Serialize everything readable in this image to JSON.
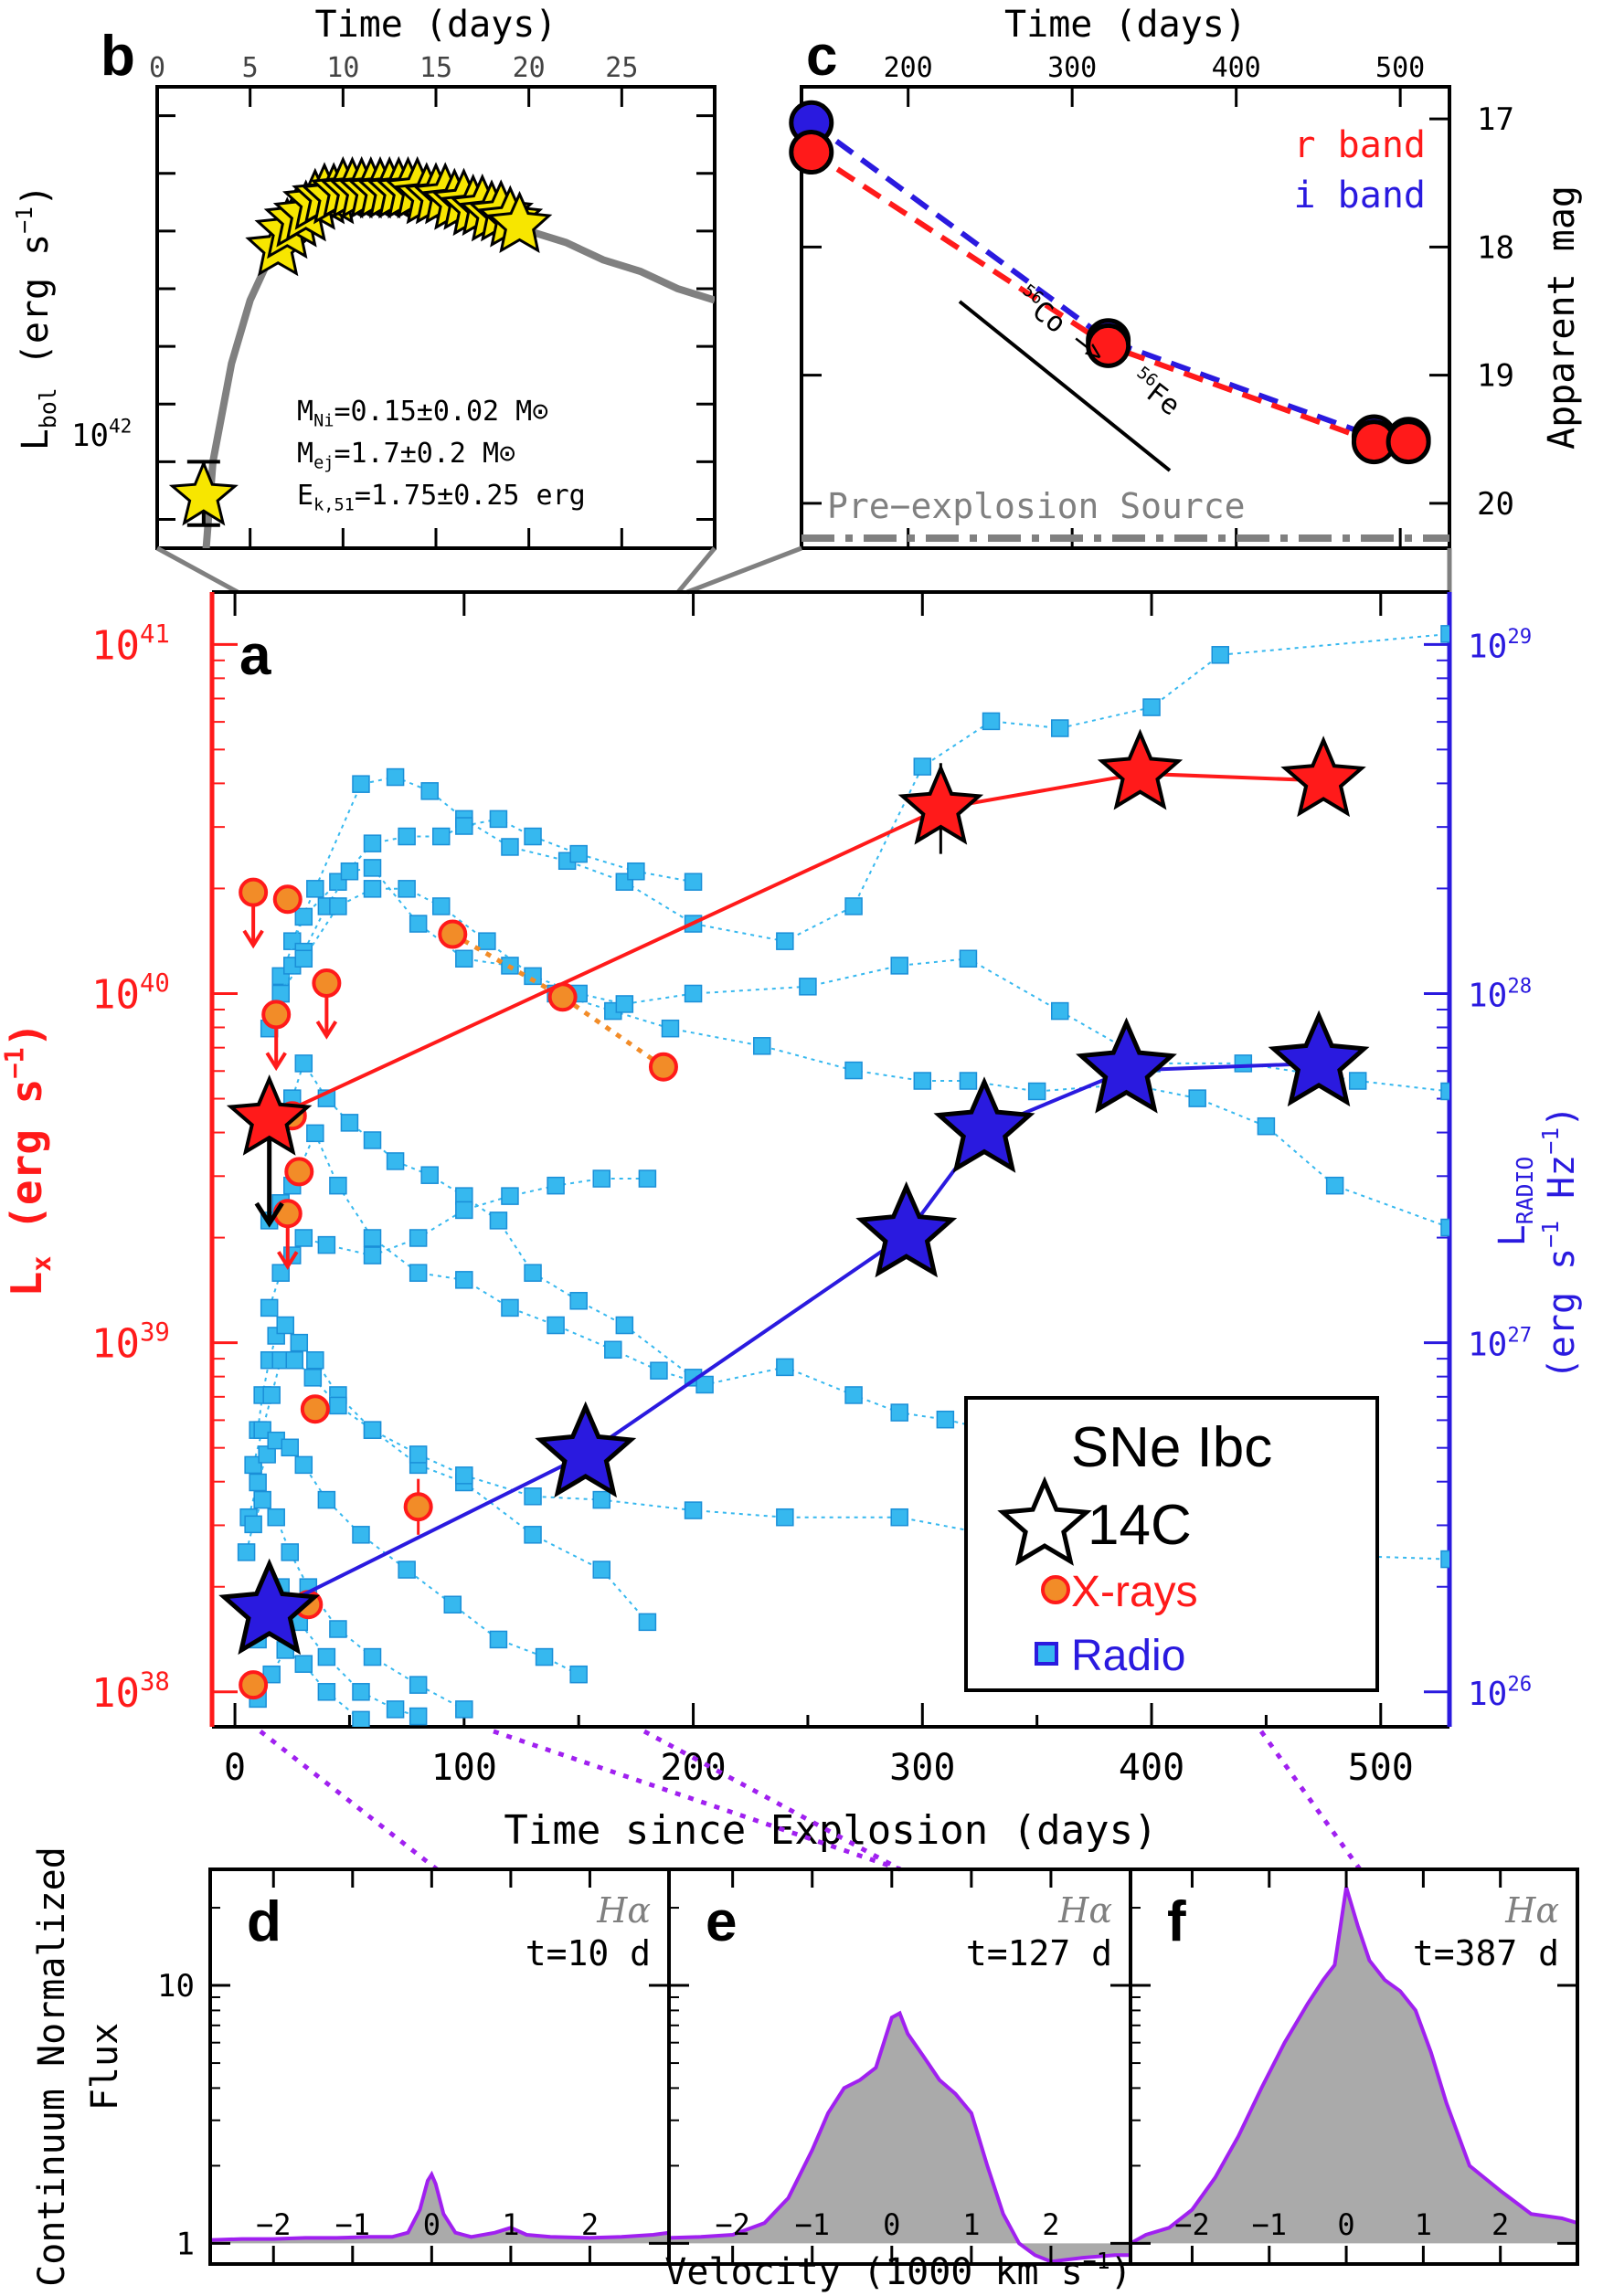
{
  "panel_labels": {
    "a": "a",
    "b": "b",
    "c": "c",
    "d": "d",
    "e": "e",
    "f": "f"
  },
  "colors": {
    "xray_red": "#ff1a1a",
    "radio_blue": "#2a1adf",
    "cyan": "#36b8ef",
    "orange": "#f28c28",
    "yellow": "#f7e600",
    "purple": "#a020f0",
    "grey": "#808080"
  },
  "chart_data": [
    {
      "id": "b",
      "type": "line",
      "xlabel": "Time (days)",
      "ylabel_main": "L",
      "ylabel_sub": "bol",
      "ylabel_tail": " (erg s",
      "ylabel_sup": "−1",
      "ylabel_end": ")",
      "xticks": [
        "0",
        "5",
        "10",
        "15",
        "20",
        "25"
      ],
      "ytick_label": {
        "base": "10",
        "exp": "42"
      },
      "xlim": [
        0,
        30
      ],
      "ylim_log": [
        41.8,
        42.6
      ],
      "model_curve": {
        "x": [
          2.2,
          3,
          4,
          5,
          6,
          7,
          8,
          9,
          10,
          11,
          12,
          13,
          14,
          15,
          16,
          17,
          18,
          19,
          20,
          22,
          24,
          26,
          28,
          30
        ],
        "logL": [
          41.62,
          41.95,
          42.12,
          42.23,
          42.3,
          42.35,
          42.38,
          42.4,
          42.41,
          42.415,
          42.415,
          42.41,
          42.4,
          42.395,
          42.39,
          42.38,
          42.37,
          42.36,
          42.35,
          42.33,
          42.3,
          42.28,
          42.25,
          42.23
        ]
      },
      "early_point": {
        "x": 2.5,
        "logL": 41.89,
        "err_lo": 0.05,
        "err_hi": 0.06
      },
      "stars": {
        "x": [
          6.5,
          7,
          7.5,
          8,
          8.5,
          9,
          9.5,
          10,
          10.5,
          11,
          11.5,
          12,
          12.5,
          13,
          13.5,
          14,
          14.5,
          15,
          15.5,
          16,
          16.5,
          17,
          17.5,
          18,
          18.5,
          19,
          19.5
        ],
        "logL": [
          42.32,
          42.35,
          42.37,
          42.38,
          42.4,
          42.41,
          42.41,
          42.42,
          42.42,
          42.42,
          42.42,
          42.42,
          42.42,
          42.42,
          42.42,
          42.42,
          42.41,
          42.41,
          42.41,
          42.4,
          42.4,
          42.39,
          42.39,
          42.38,
          42.38,
          42.37,
          42.36
        ]
      },
      "annotation": [
        {
          "main": "M",
          "sub": "Ni",
          "rest": "=0.15±0.02 M⊙"
        },
        {
          "main": "M",
          "sub": "ej",
          "rest": "=1.7±0.2 M⊙"
        },
        {
          "main": "E",
          "sub": "k,51",
          "rest": "=1.75±0.25 erg"
        }
      ]
    },
    {
      "id": "c",
      "type": "line",
      "xlabel": "Time (days)",
      "ylabel": "Apparent mag",
      "xticks": [
        "200",
        "300",
        "400",
        "500"
      ],
      "yticks": [
        "17",
        "18",
        "19",
        "20"
      ],
      "xlim": [
        135,
        530
      ],
      "ylim": [
        20.35,
        16.75
      ],
      "legend": [
        {
          "label": "r band",
          "color": "#ff1a1a"
        },
        {
          "label": "i band",
          "color": "#2a1adf"
        }
      ],
      "series": [
        {
          "name": "r band",
          "x": [
            141,
            322,
            484,
            505
          ],
          "y": [
            17.26,
            18.77,
            19.52,
            19.52
          ]
        },
        {
          "name": "i band",
          "x": [
            141,
            322,
            484,
            505
          ],
          "y": [
            17.03,
            18.73,
            19.48,
            19.5
          ]
        }
      ],
      "decay_label": {
        "a_sup": "56",
        "a": "Co",
        "arrow": "−>",
        "b_sup": "56",
        "b": "Fe"
      },
      "pre_explosion": {
        "label": "Pre−explosion Source",
        "y": 20.2
      }
    },
    {
      "id": "a",
      "type": "scatter",
      "xlabel": "Time since Explosion (days)",
      "ylabel_left": {
        "main": "L",
        "sub": "x",
        "rest": " (erg s",
        "sup": "−1",
        "end": ")"
      },
      "ylabel_right": {
        "line1_main": "L",
        "line1_sub": "RADIO",
        "line2": "(erg s",
        "line2_sup": "−1",
        "line2_mid": " Hz",
        "line2_sup2": "−1",
        "line2_end": ")"
      },
      "xticks": [
        "0",
        "100",
        "200",
        "300",
        "400",
        "500"
      ],
      "yticks_left": [
        {
          "base": "10",
          "exp": "38"
        },
        {
          "base": "10",
          "exp": "39"
        },
        {
          "base": "10",
          "exp": "40"
        },
        {
          "base": "10",
          "exp": "41"
        }
      ],
      "yticks_right": [
        {
          "base": "10",
          "exp": "26"
        },
        {
          "base": "10",
          "exp": "27"
        },
        {
          "base": "10",
          "exp": "28"
        },
        {
          "base": "10",
          "exp": "29"
        }
      ],
      "xlim": [
        -10,
        530
      ],
      "ylim_log_left": [
        37.9,
        41.15
      ],
      "ylim_log_right": [
        25.9,
        29.15
      ],
      "legend": {
        "title": "SNe Ibc",
        "items": [
          {
            "label": "14C",
            "color": "#000000"
          },
          {
            "label": "X-rays",
            "color": "#ff1a1a"
          },
          {
            "label": "Radio",
            "color": "#2a1adf"
          }
        ]
      },
      "xray_14C": {
        "x": [
          15,
          308,
          395,
          475
        ],
        "logL": [
          39.64,
          40.53,
          40.63,
          40.61
        ],
        "upper_limit_first": true
      },
      "radio_14C": {
        "x": [
          15,
          153,
          293,
          327,
          389,
          473
        ],
        "logL": [
          26.23,
          26.68,
          27.31,
          27.61,
          27.78,
          27.8
        ]
      },
      "xray_other_ulim": {
        "x": [
          8,
          18,
          23,
          40
        ],
        "logL": [
          40.29,
          39.94,
          39.37,
          40.03
        ]
      },
      "xray_other_det": {
        "x": [
          8,
          23,
          25,
          28,
          32,
          35,
          95,
          143,
          187,
          80
        ],
        "logL": [
          38.02,
          40.27,
          39.65,
          39.49,
          38.25,
          38.81,
          40.17,
          39.99,
          39.79,
          38.53
        ]
      },
      "xray_dotted": {
        "x": [
          95,
          143,
          187
        ],
        "logL": [
          40.17,
          39.99,
          39.79
        ]
      },
      "radio_tracks": [
        {
          "x": [
            25,
            35,
            55,
            70,
            85,
            100,
            120,
            145,
            170,
            200,
            240,
            270,
            300,
            330,
            360,
            400,
            430,
            530
          ],
          "logL": [
            28.15,
            28.3,
            28.6,
            28.62,
            28.58,
            28.5,
            28.42,
            28.38,
            28.32,
            28.2,
            28.15,
            28.25,
            28.65,
            28.78,
            28.76,
            28.82,
            28.97,
            29.03
          ]
        },
        {
          "x": [
            15,
            20,
            30,
            45,
            60,
            75,
            90,
            100,
            115,
            130,
            150,
            175,
            200
          ],
          "logL": [
            27.9,
            28.05,
            28.22,
            28.32,
            28.43,
            28.45,
            28.45,
            28.48,
            28.5,
            28.45,
            28.4,
            28.35,
            28.32
          ]
        },
        {
          "x": [
            20,
            25,
            30,
            40,
            50,
            60,
            80,
            100,
            120,
            140,
            165,
            190,
            230,
            270,
            300,
            320,
            350,
            390,
            420,
            450,
            480,
            530
          ],
          "logL": [
            28.0,
            28.08,
            28.12,
            28.25,
            28.35,
            28.36,
            28.2,
            28.1,
            28.08,
            28.0,
            27.95,
            27.9,
            27.85,
            27.78,
            27.75,
            27.75,
            27.72,
            27.74,
            27.7,
            27.62,
            27.45,
            27.33
          ]
        },
        {
          "x": [
            20,
            30,
            45,
            60,
            75,
            90,
            110,
            130,
            150,
            170,
            200,
            250,
            290,
            320,
            360,
            400,
            440,
            490,
            530
          ],
          "logL": [
            28.0,
            28.1,
            28.25,
            28.3,
            28.3,
            28.25,
            28.15,
            28.05,
            28.0,
            27.97,
            28.0,
            28.02,
            28.08,
            28.1,
            27.95,
            27.8,
            27.8,
            27.75,
            27.72
          ]
        },
        {
          "x": [
            25,
            30,
            40,
            50,
            60,
            70,
            85,
            100,
            115,
            130,
            150,
            170,
            200
          ],
          "logL": [
            27.7,
            27.8,
            27.7,
            27.63,
            27.58,
            27.52,
            27.48,
            27.42,
            27.35,
            27.2,
            27.12,
            27.05,
            26.9
          ]
        },
        {
          "x": [
            15,
            20,
            25,
            35,
            45,
            60,
            80,
            100,
            120,
            140,
            165,
            185,
            205,
            240,
            270,
            290,
            310,
            350
          ],
          "logL": [
            27.35,
            27.4,
            27.45,
            27.6,
            27.45,
            27.3,
            27.2,
            27.18,
            27.1,
            27.05,
            26.98,
            26.92,
            26.88,
            26.93,
            26.85,
            26.8,
            26.78,
            26.72
          ]
        },
        {
          "x": [
            15,
            20,
            25,
            30,
            40,
            60,
            80,
            100,
            120,
            140,
            160,
            180
          ],
          "logL": [
            27.1,
            27.2,
            27.25,
            27.3,
            27.28,
            27.25,
            27.3,
            27.38,
            27.42,
            27.45,
            27.47,
            27.47
          ]
        },
        {
          "x": [
            10,
            12,
            15,
            18,
            22,
            28,
            35,
            45,
            60,
            80,
            100,
            130,
            160,
            180
          ],
          "logL": [
            26.75,
            26.85,
            26.95,
            27.02,
            27.05,
            27.0,
            26.95,
            26.85,
            26.75,
            26.65,
            26.6,
            26.45,
            26.35,
            26.2
          ]
        },
        {
          "x": [
            8,
            12,
            16,
            20,
            26,
            34,
            45,
            60,
            80,
            100,
            130,
            160,
            200,
            240,
            290,
            330,
            380,
            440,
            530
          ],
          "logL": [
            26.65,
            26.75,
            26.85,
            26.95,
            26.95,
            26.9,
            26.82,
            26.75,
            26.68,
            26.62,
            26.56,
            26.55,
            26.52,
            26.5,
            26.5,
            26.45,
            26.43,
            26.4,
            26.38
          ]
        },
        {
          "x": [
            6,
            10,
            14,
            18,
            24,
            30,
            40,
            55,
            75,
            95,
            115,
            135,
            150
          ],
          "logL": [
            26.5,
            26.6,
            26.68,
            26.72,
            26.7,
            26.65,
            26.55,
            26.45,
            26.35,
            26.25,
            26.15,
            26.1,
            26.05
          ]
        },
        {
          "x": [
            5,
            8,
            12,
            18,
            24,
            32,
            45,
            60,
            80,
            100
          ],
          "logL": [
            26.4,
            26.48,
            26.55,
            26.5,
            26.4,
            26.3,
            26.18,
            26.1,
            26.02,
            25.95
          ]
        },
        {
          "x": [
            10,
            14,
            20,
            28,
            40,
            55,
            70,
            80
          ],
          "logL": [
            26.15,
            26.22,
            26.3,
            26.2,
            26.1,
            26.0,
            25.95,
            25.93
          ]
        },
        {
          "x": [
            10,
            16,
            22,
            30,
            40,
            55
          ],
          "logL": [
            25.98,
            26.05,
            26.12,
            26.08,
            26.0,
            25.92
          ]
        }
      ]
    },
    {
      "id": "d",
      "type": "area",
      "line": "Hα",
      "time": "t=10 d",
      "xlim": [
        -2.8,
        3.0
      ],
      "ylim_log": [
        -0.08,
        1.45
      ],
      "x": [
        -2.8,
        -2.4,
        -2,
        -1.6,
        -1.2,
        -0.8,
        -0.5,
        -0.3,
        -0.15,
        -0.05,
        0,
        0.05,
        0.15,
        0.3,
        0.5,
        0.8,
        1.0,
        1.2,
        1.5,
        2.0,
        2.4,
        2.8,
        3.0
      ],
      "y": [
        1.03,
        1.04,
        1.04,
        1.05,
        1.05,
        1.06,
        1.06,
        1.1,
        1.35,
        1.75,
        1.85,
        1.7,
        1.3,
        1.1,
        1.06,
        1.1,
        1.15,
        1.08,
        1.06,
        1.05,
        1.06,
        1.08,
        1.1
      ]
    },
    {
      "id": "e",
      "type": "area",
      "line": "Hα",
      "time": "t=127 d",
      "xlim": [
        -2.8,
        3.0
      ],
      "ylim_log": [
        -0.08,
        1.45
      ],
      "x": [
        -2.8,
        -2.4,
        -2,
        -1.6,
        -1.3,
        -1.0,
        -0.8,
        -0.6,
        -0.4,
        -0.2,
        0,
        0.1,
        0.2,
        0.4,
        0.6,
        0.8,
        1.0,
        1.2,
        1.4,
        1.6,
        1.8,
        2.0,
        2.4,
        2.8,
        3.0
      ],
      "y": [
        1.05,
        1.06,
        1.08,
        1.2,
        1.5,
        2.3,
        3.2,
        4.0,
        4.3,
        4.8,
        7.5,
        7.8,
        6.5,
        5.3,
        4.3,
        3.8,
        3.2,
        2.0,
        1.3,
        1.0,
        0.9,
        0.85,
        0.88,
        0.9,
        0.9
      ]
    },
    {
      "id": "f",
      "type": "area",
      "line": "Hα",
      "time": "t=387 d",
      "xlim": [
        -2.8,
        3.0
      ],
      "ylim_log": [
        -0.08,
        1.45
      ],
      "x": [
        -2.8,
        -2.6,
        -2.3,
        -2.0,
        -1.7,
        -1.4,
        -1.1,
        -0.8,
        -0.5,
        -0.3,
        -0.15,
        0,
        0.15,
        0.3,
        0.5,
        0.7,
        0.9,
        1.1,
        1.3,
        1.6,
        2.0,
        2.4,
        2.8,
        3.0
      ],
      "y": [
        1.0,
        1.08,
        1.15,
        1.35,
        1.8,
        2.6,
        4.0,
        6.0,
        8.5,
        10.5,
        12.0,
        24.0,
        17.0,
        12.5,
        10.5,
        9.5,
        8.0,
        5.5,
        3.5,
        2.0,
        1.6,
        1.3,
        1.25,
        1.2
      ]
    }
  ],
  "shared_bottom": {
    "ylabel_line1": "Continuum Normalized",
    "ylabel_line2": "Flux",
    "xlabel": "Velocity (1000 km s",
    "xlabel_sup": "−1",
    "xlabel_end": ")",
    "yticks": [
      "1",
      "10"
    ],
    "xticks": [
      "−2",
      "−1",
      "0",
      "1",
      "2"
    ]
  }
}
